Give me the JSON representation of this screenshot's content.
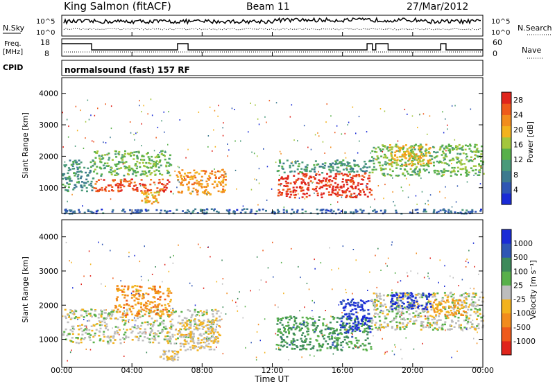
{
  "header": {
    "station": "King Salmon (fitACF)",
    "beam": "Beam 11",
    "date": "27/Mar/2012"
  },
  "panels": {
    "noise": {
      "left_label": "N.Sky",
      "right_label": "N.Search",
      "tick_top": "10^5",
      "tick_bottom": "10^0",
      "right_tick_top": "10^5",
      "right_tick_bottom": "10^0"
    },
    "freq": {
      "left_label_1": "Freq.",
      "left_label_2": "[MHz]",
      "tick_top": "18",
      "tick_bottom": "8",
      "right_label": "Nave",
      "right_tick_top": "60",
      "right_tick_bottom": "0"
    },
    "cpid": {
      "label": "CPID",
      "text": "normalsound (fast) 157 RF"
    }
  },
  "colors": {
    "power": [
      "#1a2bd6",
      "#2f56b4",
      "#3d7a8f",
      "#4a9a7a",
      "#58b04a",
      "#a3c63c",
      "#f3b21d",
      "#f28c1d",
      "#ee5a1b",
      "#e0251c"
    ],
    "velocity": [
      "#e0251c",
      "#ee5a1b",
      "#f28c1d",
      "#f3b21d",
      "#bdbdbd",
      "#58b04a",
      "#3d8a5a",
      "#2f56b4",
      "#1a2bd6"
    ]
  },
  "chart_data": [
    {
      "type": "heatmap",
      "title": "",
      "xlabel": "",
      "ylabel": "Slant Range [km]",
      "xlim": [
        0,
        24
      ],
      "ylim": [
        180,
        4500
      ],
      "x_ticks": [],
      "y_ticks": [
        "1000",
        "2000",
        "3000",
        "4000"
      ],
      "colorbar_label": "Power [dB]",
      "colorbar_ticks": [
        "4",
        "8",
        "12",
        "16",
        "20",
        "24",
        "28"
      ],
      "clim": [
        0,
        30
      ],
      "regions": [
        {
          "x": [
            0.0,
            1.8
          ],
          "y": [
            900,
            1900
          ],
          "value": 10
        },
        {
          "x": [
            1.8,
            6.2
          ],
          "y": [
            900,
            1300
          ],
          "value": 26
        },
        {
          "x": [
            1.8,
            6.2
          ],
          "y": [
            1400,
            2200
          ],
          "value": 14
        },
        {
          "x": [
            4.5,
            5.5
          ],
          "y": [
            500,
            900
          ],
          "value": 20
        },
        {
          "x": [
            6.5,
            9.3
          ],
          "y": [
            800,
            1600
          ],
          "value": 22
        },
        {
          "x": [
            12.2,
            17.6
          ],
          "y": [
            700,
            1500
          ],
          "value": 28
        },
        {
          "x": [
            12.2,
            17.6
          ],
          "y": [
            1500,
            1900
          ],
          "value": 10
        },
        {
          "x": [
            17.6,
            24.0
          ],
          "y": [
            1400,
            2400
          ],
          "value": 14
        },
        {
          "x": [
            18.6,
            21.0
          ],
          "y": [
            1700,
            2400
          ],
          "value": 20
        },
        {
          "x": [
            0.0,
            24.0
          ],
          "y": [
            200,
            350
          ],
          "value": 6
        }
      ]
    },
    {
      "type": "heatmap",
      "title": "",
      "xlabel": "Time UT",
      "ylabel": "Slant Range [km]",
      "xlim": [
        0,
        24
      ],
      "ylim": [
        180,
        4500
      ],
      "x_ticks": [
        "00:00",
        "04:00",
        "08:00",
        "12:00",
        "16:00",
        "20:00",
        "00:00"
      ],
      "y_ticks": [
        "1000",
        "2000",
        "3000",
        "4000"
      ],
      "colorbar_label": "Velocity [m s⁻¹]",
      "colorbar_ticks": [
        "1000",
        "500",
        "100",
        "25",
        "-25",
        "-100",
        "-500",
        "-1000"
      ],
      "clim": [
        -1000,
        1000
      ],
      "regions": [
        {
          "x": [
            0.0,
            9.0
          ],
          "y": [
            900,
            1900
          ],
          "value": 0
        },
        {
          "x": [
            3.0,
            6.2
          ],
          "y": [
            1700,
            2600
          ],
          "value": -400
        },
        {
          "x": [
            6.6,
            8.8
          ],
          "y": [
            700,
            1600
          ],
          "value": -120
        },
        {
          "x": [
            5.5,
            6.6
          ],
          "y": [
            400,
            700
          ],
          "value": -120
        },
        {
          "x": [
            12.2,
            17.6
          ],
          "y": [
            700,
            1700
          ],
          "value": 350
        },
        {
          "x": [
            15.8,
            17.6
          ],
          "y": [
            1200,
            2200
          ],
          "value": 900
        },
        {
          "x": [
            17.6,
            24.0
          ],
          "y": [
            1300,
            2400
          ],
          "value": 0
        },
        {
          "x": [
            18.6,
            21.0
          ],
          "y": [
            1900,
            2400
          ],
          "value": 900
        },
        {
          "x": [
            21.0,
            23.0
          ],
          "y": [
            1700,
            2200
          ],
          "value": -300
        }
      ]
    }
  ]
}
